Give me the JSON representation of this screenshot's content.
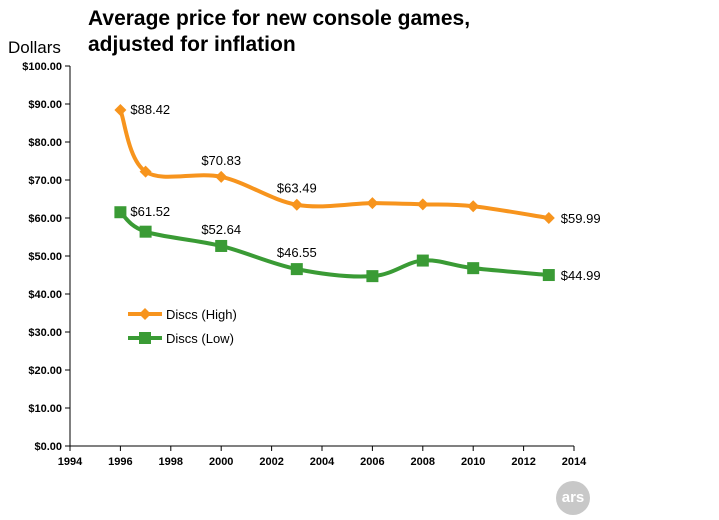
{
  "chart_data": {
    "type": "line",
    "title": "Average price for new console games, adjusted for inflation",
    "title_lines": [
      "Average price for new console games,",
      "adjusted for inflation"
    ],
    "ylabel": "Dollars",
    "xlabel": "",
    "xlim": [
      1994,
      2014
    ],
    "ylim": [
      0,
      100
    ],
    "x_ticks": [
      1994,
      1996,
      1998,
      2000,
      2002,
      2004,
      2006,
      2008,
      2010,
      2012,
      2014
    ],
    "y_ticks": [
      "$0.00",
      "$10.00",
      "$20.00",
      "$30.00",
      "$40.00",
      "$50.00",
      "$60.00",
      "$70.00",
      "$80.00",
      "$90.00",
      "$100.00"
    ],
    "grid": false,
    "legend_placement": "center-left",
    "series": [
      {
        "name": "Discs (High)",
        "color": "#f7941d",
        "marker": "diamond",
        "x": [
          1996,
          1997,
          2000,
          2003,
          2006,
          2008,
          2010,
          2013
        ],
        "y": [
          88.42,
          72.2,
          70.83,
          63.49,
          63.9,
          63.6,
          63.1,
          59.99
        ],
        "labels": [
          "$88.42",
          "",
          "$70.83",
          "$63.49",
          "",
          "",
          "",
          "$59.99"
        ]
      },
      {
        "name": "Discs (Low)",
        "color": "#3a9b35",
        "marker": "square",
        "x": [
          1996,
          1997,
          2000,
          2003,
          2006,
          2008,
          2010,
          2013
        ],
        "y": [
          61.52,
          56.4,
          52.64,
          46.55,
          44.7,
          48.8,
          46.8,
          44.99
        ],
        "labels": [
          "$61.52",
          "",
          "$52.64",
          "$46.55",
          "",
          "",
          "",
          "$44.99"
        ]
      }
    ]
  },
  "logo": {
    "text": "ars"
  }
}
